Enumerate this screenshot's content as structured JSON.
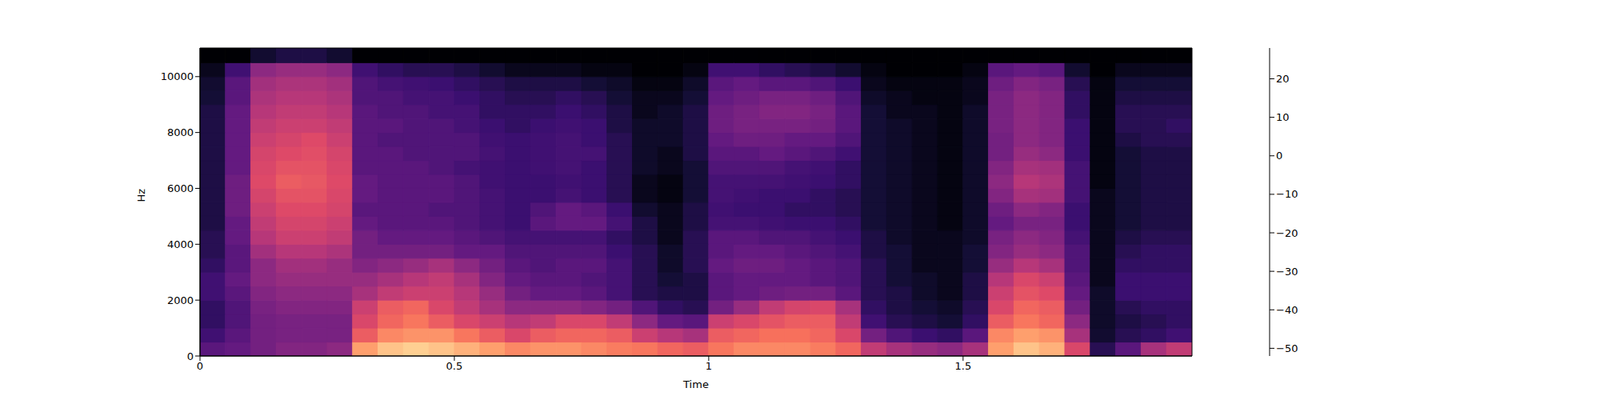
{
  "chart_data": {
    "type": "heatmap",
    "x_label": "Time",
    "y_label": "Hz",
    "color": "magma",
    "tick_labels": true,
    "xlim": [
      0,
      1.95
    ],
    "xticks": [
      0,
      0.5,
      1,
      1.5
    ],
    "ylim": [
      0,
      11025
    ],
    "yticks": [
      0,
      2000,
      4000,
      6000,
      8000,
      10000
    ],
    "x": [
      0,
      0.05,
      0.1,
      0.15,
      0.2,
      0.25,
      0.3,
      0.35,
      0.4,
      0.45,
      0.5,
      0.55,
      0.6,
      0.65,
      0.7,
      0.75,
      0.8,
      0.85,
      0.9,
      0.95,
      1.0,
      1.05,
      1.1,
      1.15,
      1.2,
      1.25,
      1.3,
      1.35,
      1.4,
      1.45,
      1.5,
      1.55,
      1.6,
      1.65,
      1.7,
      1.75,
      1.8,
      1.85,
      1.9,
      1.95
    ],
    "y": [
      0,
      500,
      1000,
      1500,
      2000,
      2500,
      3000,
      3500,
      4000,
      4500,
      5000,
      5500,
      6000,
      6500,
      7000,
      7500,
      8000,
      8500,
      9000,
      9500,
      10000,
      10500,
      11025
    ],
    "colorbar_range": [
      -52,
      28
    ],
    "colorbar_ticks": [
      {
        "value": -50,
        "label": "−50"
      },
      {
        "value": -40,
        "label": "−40"
      },
      {
        "value": -30,
        "label": "−30"
      },
      {
        "value": -20,
        "label": "−20"
      },
      {
        "value": -10,
        "label": "−10"
      },
      0,
      10,
      20
    ],
    "cells": [
      [
        -30,
        -35,
        -38,
        -38,
        -35,
        -35,
        -38,
        -40,
        -40,
        -42,
        -42,
        -42,
        -42,
        -42,
        -42,
        -42,
        -42,
        -42,
        -44,
        -45,
        -48,
        -52
      ],
      [
        -28,
        -30,
        -32,
        -32,
        -30,
        -28,
        -30,
        -30,
        -28,
        -28,
        -26,
        -26,
        -26,
        -28,
        -28,
        -28,
        -28,
        -28,
        -30,
        -30,
        -35,
        -52
      ],
      [
        -25,
        -25,
        -25,
        -24,
        -22,
        -20,
        -20,
        -16,
        -12,
        -10,
        -8,
        -6,
        -4,
        -5,
        -6,
        -8,
        -10,
        -12,
        -14,
        -16,
        -20,
        -45
      ],
      [
        -22,
        -24,
        -24,
        -22,
        -20,
        -18,
        -16,
        -12,
        -8,
        -6,
        -4,
        -2,
        0,
        -2,
        -4,
        -6,
        -8,
        -10,
        -12,
        -14,
        -18,
        -42
      ],
      [
        -22,
        -24,
        -24,
        -22,
        -20,
        -18,
        -16,
        -12,
        -8,
        -6,
        -4,
        -2,
        -1,
        -2,
        -3,
        -4,
        -8,
        -10,
        -12,
        -14,
        -18,
        -42
      ],
      [
        -20,
        -24,
        -24,
        -22,
        -20,
        -18,
        -18,
        -14,
        -10,
        -8,
        -6,
        -5,
        -4,
        -5,
        -6,
        -8,
        -10,
        -12,
        -14,
        -16,
        -20,
        -45
      ],
      [
        12,
        0,
        -5,
        -8,
        -15,
        -18,
        -22,
        -25,
        -25,
        -28,
        -30,
        -28,
        -28,
        -30,
        -30,
        -30,
        -30,
        -30,
        -32,
        -32,
        -35,
        -52
      ],
      [
        18,
        8,
        2,
        0,
        -10,
        -15,
        -20,
        -25,
        -28,
        -30,
        -30,
        -30,
        -30,
        -30,
        -30,
        -32,
        -30,
        -32,
        -32,
        -34,
        -38,
        -52
      ],
      [
        20,
        10,
        5,
        2,
        -8,
        -12,
        -18,
        -25,
        -28,
        -30,
        -30,
        -30,
        -30,
        -30,
        -32,
        -32,
        -32,
        -32,
        -34,
        -35,
        -40,
        -52
      ],
      [
        18,
        10,
        0,
        -5,
        -8,
        -10,
        -15,
        -25,
        -28,
        -30,
        -32,
        -30,
        -30,
        -32,
        -32,
        -32,
        -32,
        -34,
        -34,
        -36,
        -40,
        -52
      ],
      [
        15,
        5,
        -5,
        -10,
        -12,
        -15,
        -20,
        -28,
        -30,
        -32,
        -32,
        -32,
        -32,
        -34,
        -32,
        -32,
        -34,
        -34,
        -36,
        -38,
        -42,
        -52
      ],
      [
        12,
        0,
        -8,
        -15,
        -18,
        -22,
        -25,
        -28,
        -32,
        -34,
        -34,
        -34,
        -35,
        -35,
        -34,
        -35,
        -36,
        -38,
        -38,
        -40,
        -45,
        -52
      ],
      [
        8,
        -5,
        -12,
        -20,
        -25,
        -28,
        -30,
        -32,
        -34,
        -36,
        -36,
        -36,
        -36,
        -36,
        -36,
        -36,
        -38,
        -38,
        -40,
        -42,
        -48,
        -52
      ],
      [
        10,
        0,
        -10,
        -20,
        -28,
        -30,
        -32,
        -32,
        -34,
        -30,
        -32,
        -36,
        -36,
        -35,
        -35,
        -35,
        -36,
        -38,
        -40,
        -42,
        -48,
        -52
      ],
      [
        10,
        2,
        -5,
        -20,
        -28,
        -30,
        -30,
        -32,
        -34,
        -28,
        -28,
        -34,
        -35,
        -34,
        -34,
        -34,
        -35,
        -36,
        -38,
        -42,
        -48,
        -52
      ],
      [
        8,
        2,
        -5,
        -22,
        -30,
        -32,
        -30,
        -32,
        -34,
        -28,
        -30,
        -36,
        -36,
        -36,
        -34,
        -36,
        -36,
        -38,
        -40,
        -44,
        -50,
        -52
      ],
      [
        6,
        0,
        -10,
        -25,
        -34,
        -34,
        -34,
        -36,
        -38,
        -34,
        -36,
        -40,
        -40,
        -40,
        -40,
        -40,
        -42,
        -42,
        -44,
        -46,
        -50,
        -52
      ],
      [
        5,
        -8,
        -20,
        -32,
        -40,
        -40,
        -40,
        -40,
        -42,
        -42,
        -45,
        -48,
        -48,
        -46,
        -46,
        -46,
        -46,
        -48,
        -48,
        -50,
        -52,
        -52
      ],
      [
        2,
        -12,
        -28,
        -38,
        -42,
        -44,
        -46,
        -46,
        -48,
        -48,
        -48,
        -50,
        -50,
        -48,
        -48,
        -46,
        -46,
        -46,
        -48,
        -50,
        -52,
        -52
      ],
      [
        0,
        -15,
        -30,
        -40,
        -42,
        -42,
        -40,
        -40,
        -40,
        -42,
        -42,
        -44,
        -44,
        -44,
        -42,
        -42,
        -42,
        -42,
        -44,
        -46,
        -50,
        -52
      ],
      [
        5,
        0,
        -8,
        -25,
        -30,
        -30,
        -28,
        -30,
        -30,
        -34,
        -35,
        -34,
        -34,
        -32,
        -30,
        -28,
        -26,
        -26,
        -28,
        -30,
        -35,
        -52
      ],
      [
        8,
        2,
        -5,
        -18,
        -28,
        -28,
        -26,
        -28,
        -30,
        -34,
        -36,
        -35,
        -34,
        -32,
        -30,
        -26,
        -24,
        -24,
        -26,
        -28,
        -35,
        -52
      ],
      [
        8,
        4,
        -2,
        -10,
        -26,
        -28,
        -26,
        -28,
        -32,
        -35,
        -36,
        -36,
        -34,
        -32,
        -28,
        -26,
        -24,
        -22,
        -24,
        -30,
        -38,
        -52
      ],
      [
        8,
        4,
        0,
        -6,
        -25,
        -28,
        -28,
        -30,
        -32,
        -36,
        -38,
        -36,
        -35,
        -34,
        -30,
        -28,
        -24,
        -22,
        -24,
        -30,
        -40,
        -52
      ],
      [
        6,
        2,
        0,
        -5,
        -25,
        -30,
        -30,
        -32,
        -34,
        -36,
        -38,
        -38,
        -36,
        -35,
        -32,
        -28,
        -25,
        -24,
        -26,
        -32,
        -42,
        -52
      ],
      [
        2,
        -5,
        -10,
        -15,
        -30,
        -32,
        -32,
        -34,
        -36,
        -38,
        -40,
        -40,
        -38,
        -38,
        -35,
        -32,
        -30,
        -30,
        -32,
        -36,
        -45,
        -52
      ],
      [
        -10,
        -25,
        -35,
        -38,
        -40,
        -40,
        -40,
        -42,
        -42,
        -44,
        -44,
        -44,
        -44,
        -44,
        -44,
        -44,
        -44,
        -44,
        -46,
        -48,
        -50,
        -52
      ],
      [
        -15,
        -32,
        -40,
        -42,
        -42,
        -44,
        -44,
        -44,
        -46,
        -46,
        -46,
        -46,
        -46,
        -46,
        -46,
        -46,
        -46,
        -48,
        -48,
        -50,
        -52,
        -52
      ],
      [
        -18,
        -36,
        -42,
        -44,
        -46,
        -46,
        -48,
        -48,
        -48,
        -48,
        -48,
        -48,
        -48,
        -48,
        -48,
        -48,
        -48,
        -48,
        -50,
        -50,
        -52,
        -52
      ],
      [
        -20,
        -38,
        -44,
        -46,
        -48,
        -48,
        -48,
        -48,
        -48,
        -50,
        -50,
        -50,
        -50,
        -50,
        -50,
        -50,
        -50,
        -50,
        -50,
        -50,
        -52,
        -52
      ],
      [
        -15,
        -30,
        -38,
        -40,
        -42,
        -42,
        -44,
        -44,
        -46,
        -46,
        -46,
        -46,
        -46,
        -46,
        -46,
        -46,
        -46,
        -46,
        -48,
        -48,
        -50,
        -52
      ],
      [
        12,
        8,
        0,
        -5,
        -8,
        -12,
        -18,
        -22,
        -24,
        -28,
        -26,
        -22,
        -20,
        -22,
        -25,
        -25,
        -24,
        -24,
        -24,
        -26,
        -30,
        -52
      ],
      [
        18,
        12,
        5,
        2,
        -2,
        -5,
        -12,
        -18,
        -20,
        -24,
        -20,
        -15,
        -12,
        -15,
        -18,
        -20,
        -20,
        -20,
        -20,
        -22,
        -28,
        -52
      ],
      [
        15,
        10,
        2,
        0,
        -4,
        -8,
        -15,
        -20,
        -22,
        -24,
        -22,
        -16,
        -14,
        -16,
        -20,
        -22,
        -22,
        -22,
        -22,
        -24,
        -30,
        -52
      ],
      [
        -5,
        -15,
        -20,
        -25,
        -28,
        -30,
        -32,
        -32,
        -34,
        -36,
        -36,
        -34,
        -34,
        -34,
        -36,
        -36,
        -36,
        -38,
        -38,
        -40,
        -45,
        -52
      ],
      [
        -40,
        -45,
        -46,
        -46,
        -46,
        -48,
        -48,
        -48,
        -48,
        -48,
        -48,
        -48,
        -50,
        -50,
        -50,
        -50,
        -50,
        -50,
        -50,
        -50,
        -52,
        -52
      ],
      [
        -30,
        -40,
        -42,
        -40,
        -36,
        -36,
        -38,
        -40,
        -42,
        -44,
        -44,
        -44,
        -44,
        -44,
        -44,
        -42,
        -40,
        -40,
        -42,
        -44,
        -48,
        -52
      ],
      [
        -15,
        -38,
        -40,
        -38,
        -36,
        -36,
        -38,
        -38,
        -40,
        -42,
        -42,
        -42,
        -42,
        -42,
        -42,
        -40,
        -40,
        -40,
        -42,
        -44,
        -48,
        -52
      ],
      [
        -10,
        -35,
        -38,
        -38,
        -36,
        -36,
        -38,
        -38,
        -40,
        -42,
        -42,
        -42,
        -42,
        -42,
        -42,
        -40,
        -38,
        -40,
        -42,
        -44,
        -48,
        -52
      ]
    ]
  }
}
